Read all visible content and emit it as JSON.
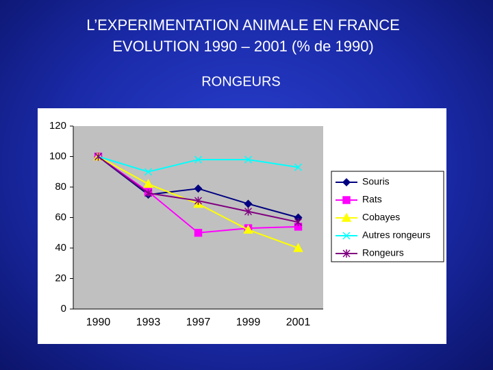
{
  "chart_data": {
    "type": "line",
    "title": "L’EXPERIMENTATION ANIMALE EN FRANCE",
    "subtitle": "EVOLUTION 1990 – 2001 (% de 1990)",
    "heading": "RONGEURS",
    "categories": [
      "1990",
      "1993",
      "1997",
      "1999",
      "2001"
    ],
    "series": [
      {
        "name": "Souris",
        "color": "#000080",
        "marker": "diamond",
        "values": [
          100,
          75,
          79,
          69,
          60
        ]
      },
      {
        "name": "Rats",
        "color": "#ff00ff",
        "marker": "square",
        "values": [
          100,
          77,
          50,
          53,
          54
        ]
      },
      {
        "name": "Cobayes",
        "color": "#ffff00",
        "marker": "triangle",
        "values": [
          100,
          82,
          69,
          52,
          40
        ]
      },
      {
        "name": "Autres rongeurs",
        "color": "#00ffff",
        "marker": "x",
        "values": [
          100,
          90,
          98,
          98,
          93
        ]
      },
      {
        "name": "Rongeurs",
        "color": "#800080",
        "marker": "asterisk",
        "values": [
          100,
          76,
          71,
          64,
          57
        ]
      }
    ],
    "ylim": [
      0,
      120
    ],
    "yticks": [
      0,
      20,
      40,
      60,
      80,
      100,
      120
    ],
    "grid": false,
    "legend": "right"
  }
}
